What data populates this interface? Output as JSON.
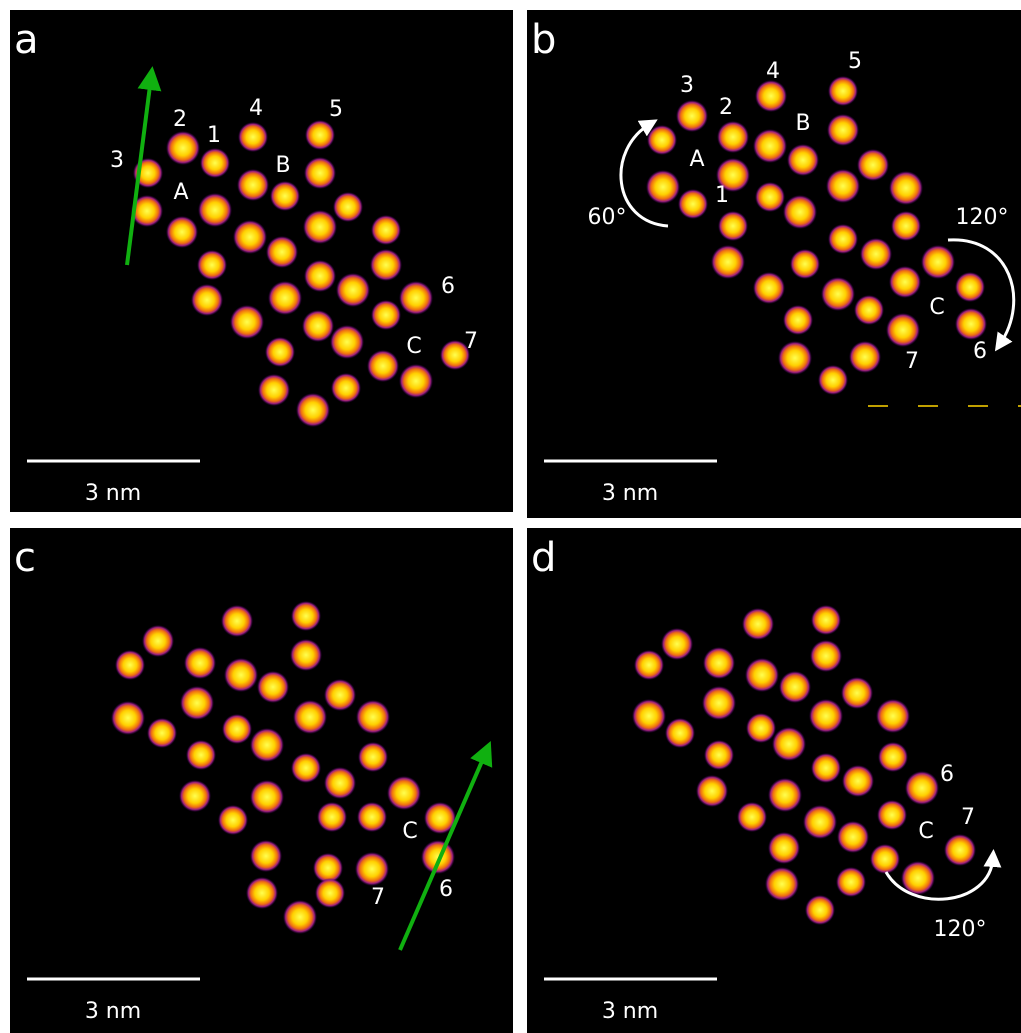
{
  "panels": [
    {
      "letter": "a",
      "scale_bar": "3 nm",
      "annotations": [
        "3",
        "2",
        "1",
        "4",
        "5",
        "A",
        "B",
        "6",
        "C",
        "7"
      ]
    },
    {
      "letter": "b",
      "scale_bar": "3 nm",
      "annotations": [
        "3",
        "2",
        "4",
        "5",
        "B",
        "A",
        "1",
        "60°",
        "120°",
        "C",
        "7",
        "6"
      ]
    },
    {
      "letter": "c",
      "scale_bar": "3 nm",
      "annotations": [
        "C",
        "6",
        "7"
      ]
    },
    {
      "letter": "d",
      "scale_bar": "3 nm",
      "annotations": [
        "6",
        "C",
        "7",
        "120°"
      ]
    }
  ]
}
